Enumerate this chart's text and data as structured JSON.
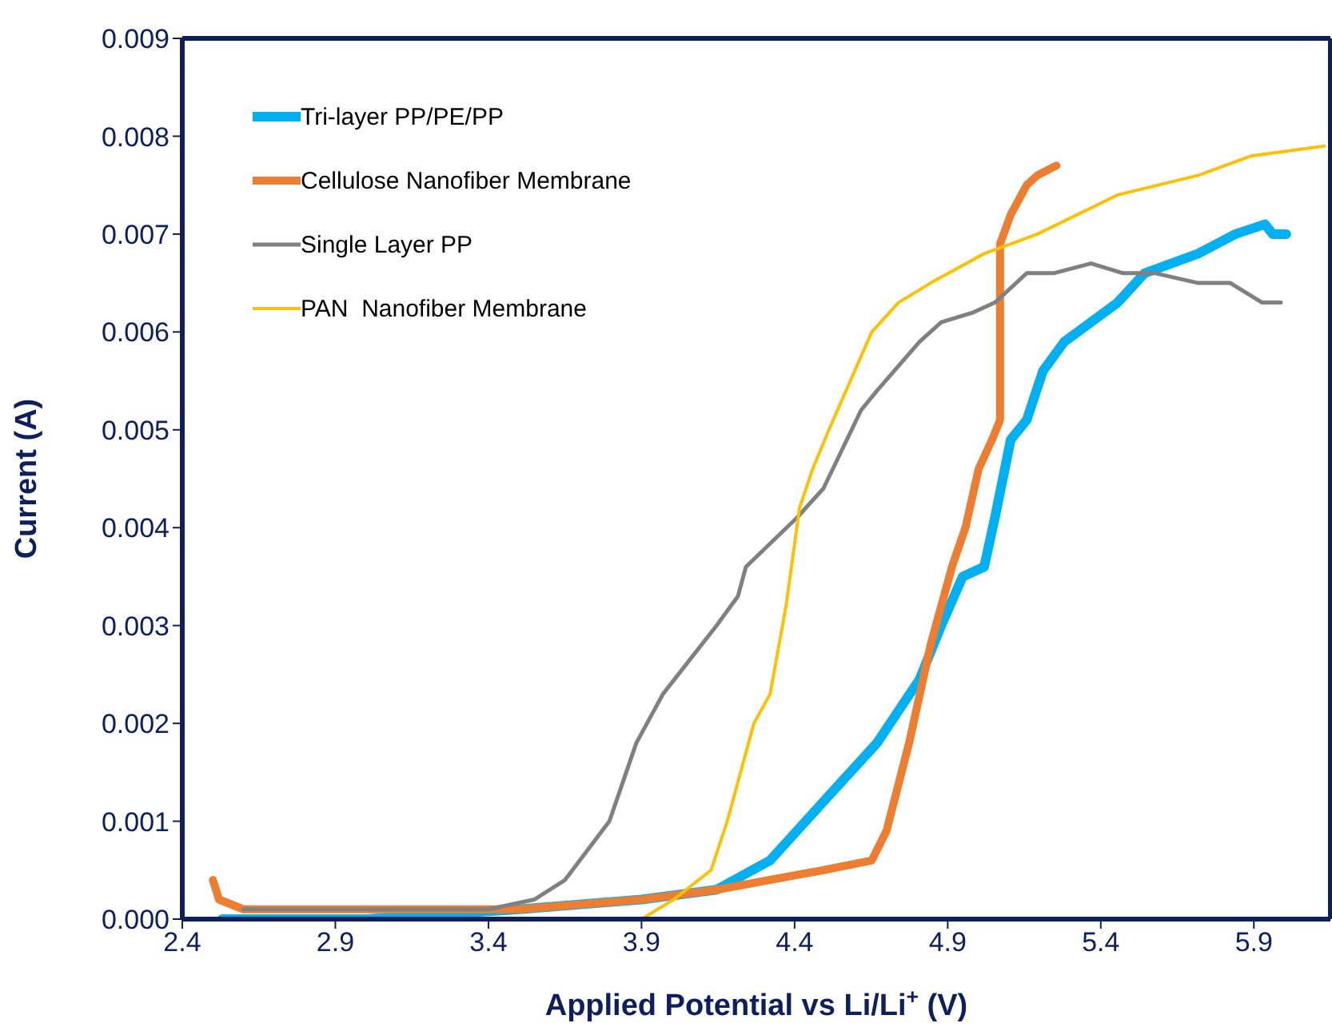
{
  "chart_data": {
    "type": "line",
    "xlabel": "Applied Potential vs Li/Li$^{+}$ (V)",
    "ylabel": "Current (A)",
    "xlim": [
      2.4,
      6.15
    ],
    "xticks": [
      2.4,
      2.9,
      3.4,
      3.9,
      4.4,
      4.9,
      5.4,
      5.9
    ],
    "ylim": [
      0,
      0.009
    ],
    "yticks": [
      {
        "value": 0,
        "label": "0.000"
      },
      {
        "value": 0.001,
        "label": "0.001"
      },
      {
        "value": 0.002,
        "label": "0.002"
      },
      {
        "value": 0.003,
        "label": "0.003"
      },
      {
        "value": 0.004,
        "label": "0.004"
      },
      {
        "value": 0.005,
        "label": "0.005"
      },
      {
        "value": 0.006,
        "label": "0.006"
      },
      {
        "value": 0.007,
        "label": "0.007"
      },
      {
        "value": 0.008,
        "label": "0.008"
      },
      {
        "value": 0.009,
        "label": "0.009"
      }
    ],
    "legend": "top left",
    "marker": "none",
    "line_style": "solid",
    "series": [
      {
        "name": "Tri-layer PP/PE/PP",
        "color": "#00b0f0",
        "x": [
          2.53,
          3.0,
          3.5,
          3.9,
          4.145,
          4.32,
          4.494,
          4.669,
          4.808,
          4.879,
          4.949,
          5.019,
          5.054,
          5.106,
          5.158,
          5.211,
          5.281,
          5.368,
          5.455,
          5.543,
          5.718,
          5.84,
          5.936,
          5.962,
          6.006
        ],
        "values": [
          0,
          0,
          0.0001,
          0.0002,
          0.0003,
          0.0006,
          0.0012,
          0.0018,
          0.00245,
          0.003,
          0.0035,
          0.0036,
          0.0041,
          0.0049,
          0.0051,
          0.0056,
          0.0059,
          0.0061,
          0.0063,
          0.0066,
          0.0068,
          0.007,
          0.0071,
          0.007,
          0.007
        ]
      },
      {
        "name": "Cellulose Nanofiber Membrane",
        "color": "#ed7d31",
        "x": [
          2.5,
          2.52,
          2.6,
          3.0,
          3.5,
          3.9,
          4.145,
          4.494,
          4.652,
          4.7,
          4.774,
          4.844,
          4.914,
          4.958,
          5.001,
          5.045,
          5.071,
          5.071,
          5.106,
          5.158,
          5.193,
          5.255
        ],
        "values": [
          0.0004,
          0.0002,
          0.0001,
          0.0001,
          0.0001,
          0.0002,
          0.0003,
          0.0005,
          0.0006,
          0.0009,
          0.0018,
          0.0028,
          0.0036,
          0.004,
          0.0046,
          0.0049,
          0.0051,
          0.0069,
          0.0072,
          0.0075,
          0.0076,
          0.0077
        ]
      },
      {
        "name": "Single Layer PP",
        "color": "#808080",
        "x": [
          2.6,
          3.1,
          3.25,
          3.4,
          3.55,
          3.65,
          3.795,
          3.883,
          3.97,
          4.145,
          4.215,
          4.241,
          4.407,
          4.494,
          4.617,
          4.669,
          4.808,
          4.879,
          4.984,
          5.054,
          5.158,
          5.246,
          5.368,
          5.473,
          5.578,
          5.718,
          5.823,
          5.927,
          5.988
        ],
        "values": [
          0.0001,
          0.0001,
          0.0001,
          0.0001,
          0.0002,
          0.0004,
          0.001,
          0.0018,
          0.0023,
          0.003,
          0.0033,
          0.0036,
          0.0041,
          0.0044,
          0.0052,
          0.0054,
          0.0059,
          0.0061,
          0.0062,
          0.0063,
          0.0066,
          0.0066,
          0.0067,
          0.0066,
          0.0066,
          0.0065,
          0.0065,
          0.0063,
          0.0063
        ]
      },
      {
        "name": "PAN  Nanofiber Membrane",
        "color": "#ffc000",
        "x": [
          2.6,
          3.4,
          3.9,
          4.005,
          4.127,
          4.18,
          4.267,
          4.32,
          4.372,
          4.416,
          4.459,
          4.512,
          4.582,
          4.652,
          4.739,
          4.844,
          5.019,
          5.193,
          5.455,
          5.718,
          5.893,
          6.13
        ],
        "values": [
          0,
          0,
          0,
          0.0002,
          0.0005,
          0.001,
          0.002,
          0.0023,
          0.0032,
          0.0042,
          0.0046,
          0.005,
          0.0055,
          0.006,
          0.0063,
          0.0065,
          0.0068,
          0.007,
          0.0074,
          0.0076,
          0.0078,
          0.0079
        ]
      }
    ]
  }
}
